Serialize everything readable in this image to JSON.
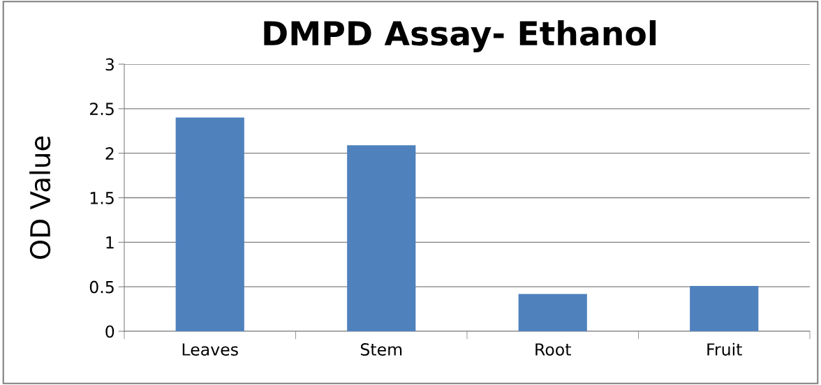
{
  "chart_data": {
    "type": "bar",
    "title": "DMPD Assay- Ethanol",
    "ylabel": "OD Value",
    "categories": [
      "Leaves",
      "Stem",
      "Root",
      "Fruit"
    ],
    "values": [
      2.4,
      2.09,
      0.42,
      0.51
    ],
    "color": "#4f81bd",
    "ylim": [
      0,
      3
    ],
    "yticks": [
      0,
      0.5,
      1,
      1.5,
      2,
      2.5,
      3
    ],
    "grid": "y",
    "legend": false
  }
}
